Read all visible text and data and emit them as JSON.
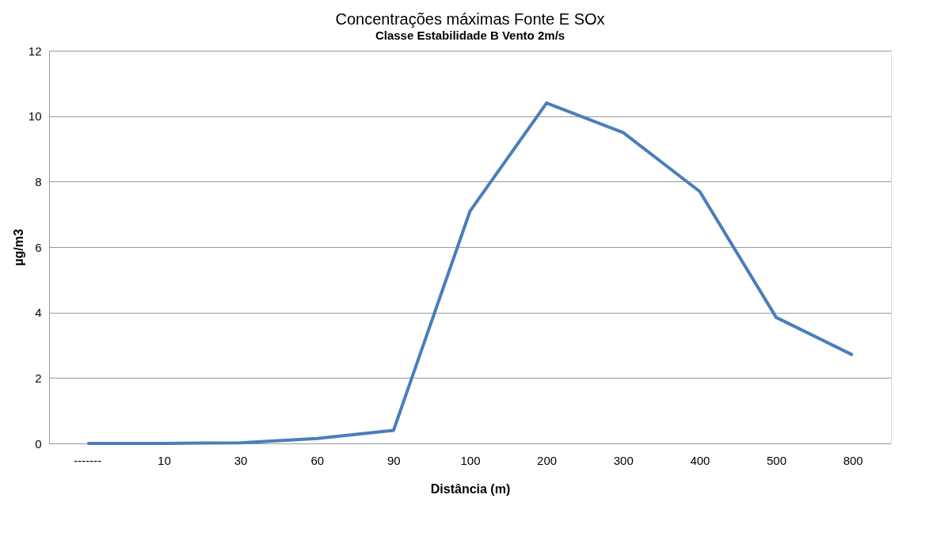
{
  "chart_data": {
    "type": "line",
    "title": "Concentrações máximas Fonte E SOx",
    "subtitle": "Classe Estabilidade  B Vento 2m/s",
    "xlabel": "Distância  (m)",
    "ylabel": "µg/m3",
    "categories": [
      "-------",
      "10",
      "30",
      "60",
      "90",
      "100",
      "200",
      "300",
      "400",
      "500",
      "800"
    ],
    "series": [
      {
        "color": "#4a7ebb",
        "values": [
          0,
          0,
          0.02,
          0.15,
          0.4,
          7.1,
          10.4,
          9.5,
          7.7,
          3.85,
          2.7
        ]
      }
    ],
    "ylim": [
      0,
      12
    ],
    "yticks": [
      0,
      2,
      4,
      6,
      8,
      10,
      12
    ],
    "grid": "y",
    "marker": "none",
    "line_style": "solid",
    "legend": false
  }
}
